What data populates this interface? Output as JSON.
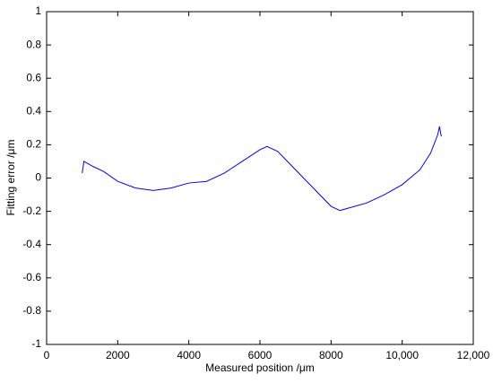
{
  "chart_data": {
    "type": "line",
    "xlabel": "Measured position /μm",
    "ylabel": "Fitting error /μm",
    "xlim": [
      0,
      12000
    ],
    "ylim": [
      -1,
      1
    ],
    "xticks": [
      0,
      2000,
      4000,
      6000,
      8000,
      {
        "value": 10000,
        "label": "10,000"
      },
      {
        "value": 12000,
        "label": "12,000"
      }
    ],
    "yticks": [
      -1,
      -0.8,
      -0.6,
      -0.4,
      -0.2,
      0,
      0.2,
      0.4,
      0.6,
      0.8,
      1
    ],
    "grid": false,
    "series": [
      {
        "color": "#0000ff",
        "x": [
          1000,
          1050,
          1300,
          1600,
          2000,
          2500,
          3000,
          3500,
          4000,
          4500,
          5000,
          5500,
          6000,
          6200,
          6500,
          7000,
          7500,
          8000,
          8250,
          8500,
          9000,
          9500,
          10000,
          10500,
          10800,
          11000,
          11050,
          11100
        ],
        "values": [
          0.03,
          0.1,
          0.07,
          0.04,
          -0.02,
          -0.06,
          -0.075,
          -0.06,
          -0.03,
          -0.02,
          0.03,
          0.1,
          0.17,
          0.19,
          0.16,
          0.05,
          -0.06,
          -0.17,
          -0.195,
          -0.18,
          -0.15,
          -0.1,
          -0.04,
          0.05,
          0.15,
          0.26,
          0.31,
          0.25
        ]
      }
    ]
  }
}
